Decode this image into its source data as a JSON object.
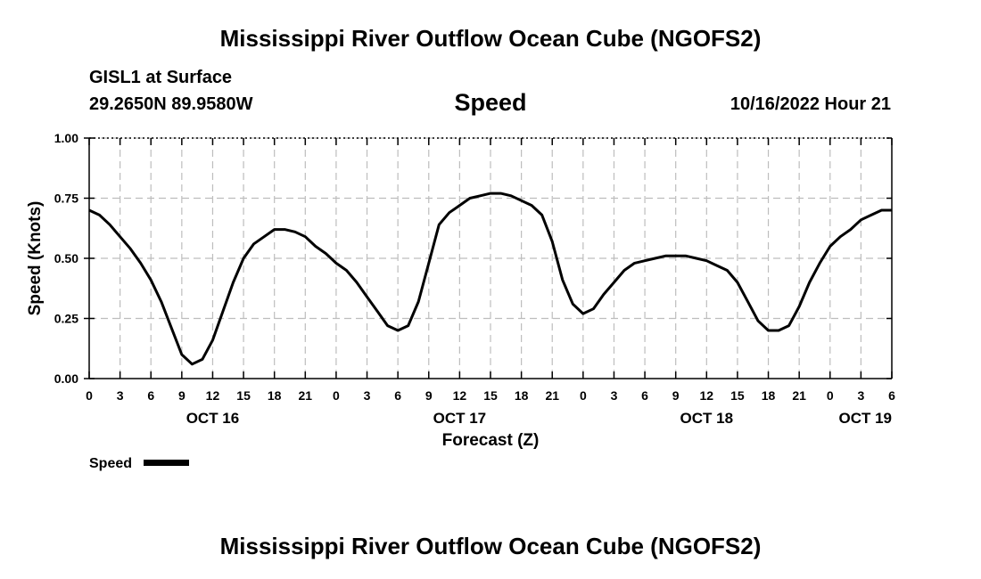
{
  "header": {
    "title": "Mississippi River Outflow Ocean Cube (NGOFS2)",
    "station": "GISL1 at Surface",
    "coordinates": "29.2650N  89.9580W",
    "chart_heading": "Speed",
    "datetime": "10/16/2022 Hour 21"
  },
  "footer": {
    "title": "Mississippi River Outflow Ocean Cube (NGOFS2)"
  },
  "chart_data": {
    "type": "line",
    "title": "Speed",
    "xlabel": "Forecast (Z)",
    "ylabel": "Speed (Knots)",
    "xlim": [
      0,
      78
    ],
    "ylim": [
      0,
      1
    ],
    "grid": true,
    "x_tick_labels": [
      "0",
      "3",
      "6",
      "9",
      "12",
      "15",
      "18",
      "21",
      "0",
      "3",
      "6",
      "9",
      "12",
      "15",
      "18",
      "21",
      "0",
      "3",
      "6",
      "9",
      "12",
      "15",
      "18",
      "21",
      "0",
      "3",
      "6"
    ],
    "y_tick_labels": [
      "0.00",
      "0.25",
      "0.50",
      "0.75",
      "1.00"
    ],
    "y_ticks": [
      0,
      0.25,
      0.5,
      0.75,
      1.0
    ],
    "day_labels": [
      {
        "label": "OCT 16",
        "x": 12
      },
      {
        "label": "OCT 17",
        "x": 36
      },
      {
        "label": "OCT 18",
        "x": 60
      },
      {
        "label": "OCT 19",
        "x": 78
      }
    ],
    "legend": {
      "label": "Speed",
      "position": "bottom-left"
    },
    "series": [
      {
        "name": "Speed",
        "x": [
          0,
          1,
          2,
          3,
          4,
          5,
          6,
          7,
          8,
          9,
          10,
          11,
          12,
          13,
          14,
          15,
          16,
          17,
          18,
          19,
          20,
          21,
          22,
          23,
          24,
          25,
          26,
          27,
          28,
          29,
          30,
          31,
          32,
          33,
          34,
          35,
          36,
          37,
          38,
          39,
          40,
          41,
          42,
          43,
          44,
          45,
          46,
          47,
          48,
          49,
          50,
          51,
          52,
          53,
          54,
          55,
          56,
          57,
          58,
          59,
          60,
          61,
          62,
          63,
          64,
          65,
          66,
          67,
          68,
          69,
          70,
          71,
          72,
          73,
          74,
          75,
          76,
          77,
          78
        ],
        "values": [
          0.7,
          0.68,
          0.64,
          0.59,
          0.54,
          0.48,
          0.41,
          0.32,
          0.21,
          0.1,
          0.06,
          0.08,
          0.16,
          0.28,
          0.4,
          0.5,
          0.56,
          0.59,
          0.62,
          0.62,
          0.61,
          0.59,
          0.55,
          0.52,
          0.48,
          0.45,
          0.4,
          0.34,
          0.28,
          0.22,
          0.2,
          0.22,
          0.32,
          0.48,
          0.64,
          0.69,
          0.72,
          0.75,
          0.76,
          0.77,
          0.77,
          0.76,
          0.74,
          0.72,
          0.68,
          0.57,
          0.41,
          0.31,
          0.27,
          0.29,
          0.35,
          0.4,
          0.45,
          0.48,
          0.49,
          0.5,
          0.51,
          0.51,
          0.51,
          0.5,
          0.49,
          0.47,
          0.45,
          0.4,
          0.32,
          0.24,
          0.2,
          0.2,
          0.22,
          0.3,
          0.4,
          0.48,
          0.55,
          0.59,
          0.62,
          0.66,
          0.68,
          0.7,
          0.7
        ]
      }
    ]
  }
}
